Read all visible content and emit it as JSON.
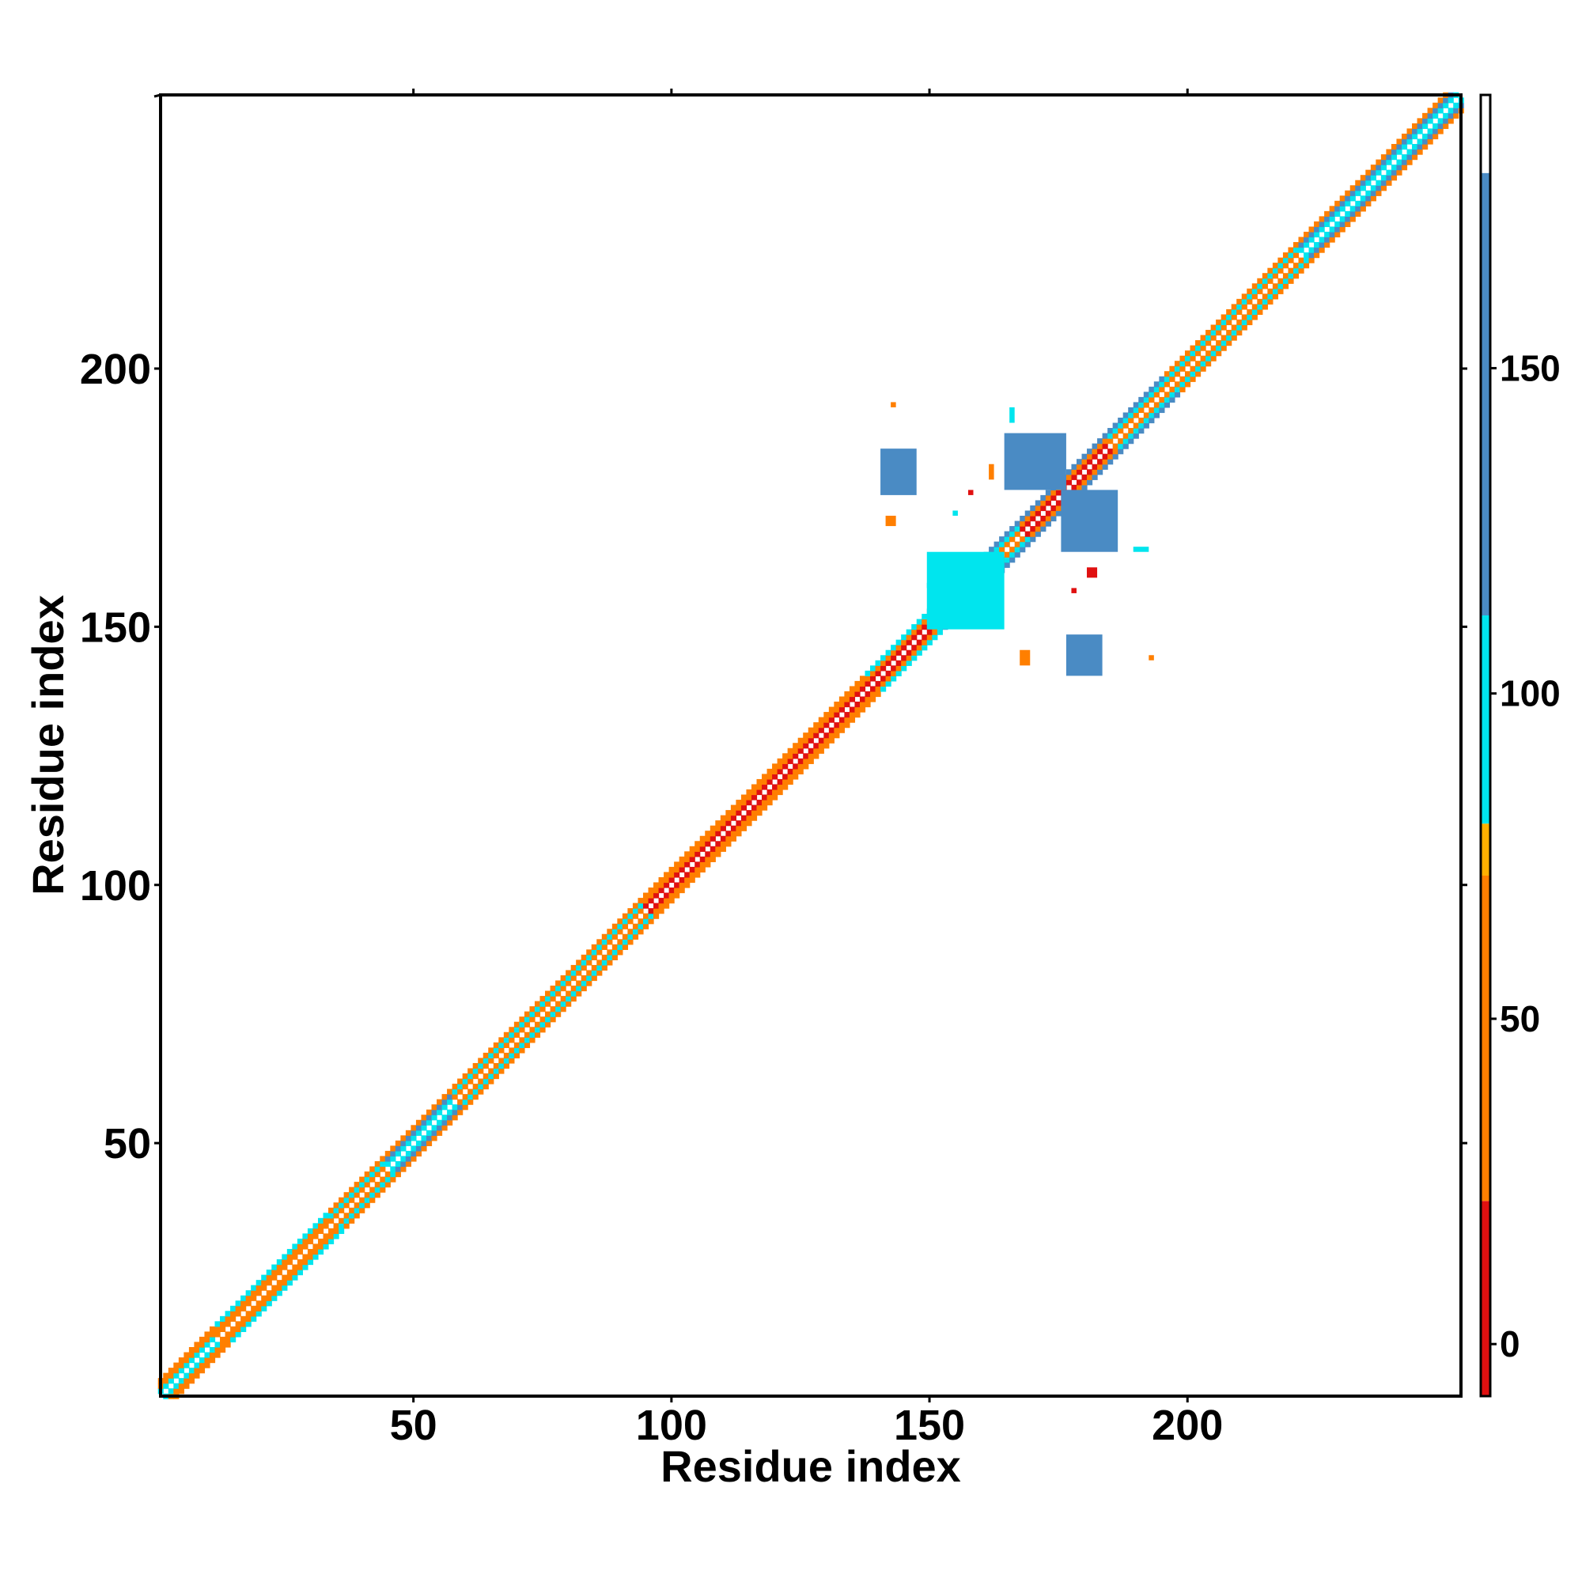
{
  "chart_data": {
    "type": "heatmap",
    "title": "",
    "xlabel": "Residue index",
    "ylabel": "Residue index",
    "xlim": [
      1,
      253
    ],
    "ylim": [
      1,
      253
    ],
    "x_ticks": [
      50,
      100,
      150,
      200
    ],
    "y_ticks": [
      50,
      100,
      150,
      200
    ],
    "colorbar": {
      "ticks": [
        0,
        50,
        100,
        150
      ],
      "range": [
        -8,
        192
      ],
      "bands": [
        {
          "from": -8,
          "to": 22,
          "color": "#e01010"
        },
        {
          "from": 22,
          "to": 72,
          "color": "#ff7f00"
        },
        {
          "from": 72,
          "to": 80,
          "color": "#ffb000"
        },
        {
          "from": 80,
          "to": 112,
          "color": "#00e5ee"
        },
        {
          "from": 112,
          "to": 180,
          "color": "#4a8bc4"
        },
        {
          "from": 180,
          "to": 192,
          "color": "#ffffff"
        }
      ]
    },
    "diagonal_segments": [
      {
        "from": 1,
        "to": 12,
        "values": [
          110,
          40,
          60
        ]
      },
      {
        "from": 12,
        "to": 34,
        "values": [
          60,
          40,
          110
        ]
      },
      {
        "from": 34,
        "to": 45,
        "values": [
          40,
          110,
          60
        ]
      },
      {
        "from": 45,
        "to": 58,
        "values": [
          110,
          150,
          40
        ]
      },
      {
        "from": 58,
        "to": 95,
        "values": [
          60,
          110,
          40
        ]
      },
      {
        "from": 95,
        "to": 138,
        "values": [
          10,
          40,
          60
        ]
      },
      {
        "from": 138,
        "to": 150,
        "values": [
          10,
          60,
          110
        ]
      },
      {
        "from": 150,
        "to": 168,
        "values": [
          60,
          110,
          150
        ]
      },
      {
        "from": 168,
        "to": 185,
        "values": [
          10,
          40,
          150
        ]
      },
      {
        "from": 185,
        "to": 196,
        "values": [
          60,
          110,
          150
        ]
      },
      {
        "from": 196,
        "to": 222,
        "values": [
          40,
          110,
          60
        ]
      },
      {
        "from": 222,
        "to": 253,
        "values": [
          110,
          150,
          60
        ]
      }
    ],
    "off_diagonal_blocks": [
      {
        "x": [
          141,
          147
        ],
        "y": [
          176,
          184
        ],
        "value": 150
      },
      {
        "x": [
          165,
          176
        ],
        "y": [
          177,
          187
        ],
        "value": 150
      },
      {
        "x": [
          176,
          186
        ],
        "y": [
          165,
          176
        ],
        "value": 150
      },
      {
        "x": [
          177,
          183
        ],
        "y": [
          141,
          148
        ],
        "value": 150
      },
      {
        "x": [
          150,
          164
        ],
        "y": [
          150,
          164
        ],
        "value": 110
      },
      {
        "x": [
          143,
          143
        ],
        "y": [
          193,
          193
        ],
        "value": 60
      },
      {
        "x": [
          166,
          166
        ],
        "y": [
          190,
          192
        ],
        "value": 110
      },
      {
        "x": [
          190,
          192
        ],
        "y": [
          165,
          165
        ],
        "value": 110
      },
      {
        "x": [
          142,
          143
        ],
        "y": [
          170,
          171
        ],
        "value": 40
      },
      {
        "x": [
          168,
          169
        ],
        "y": [
          143,
          145
        ],
        "value": 40
      },
      {
        "x": [
          193,
          193
        ],
        "y": [
          144,
          144
        ],
        "value": 40
      },
      {
        "x": [
          158,
          158
        ],
        "y": [
          176,
          176
        ],
        "value": 10
      },
      {
        "x": [
          162,
          162
        ],
        "y": [
          179,
          181
        ],
        "value": 40
      },
      {
        "x": [
          181,
          182
        ],
        "y": [
          160,
          161
        ],
        "value": 10
      },
      {
        "x": [
          178,
          178
        ],
        "y": [
          157,
          157
        ],
        "value": 10
      },
      {
        "x": [
          150,
          150
        ],
        "y": [
          158,
          158
        ],
        "value": 110
      },
      {
        "x": [
          157,
          157
        ],
        "y": [
          151,
          151
        ],
        "value": 110
      },
      {
        "x": [
          155,
          155
        ],
        "y": [
          172,
          172
        ],
        "value": 110
      }
    ]
  }
}
